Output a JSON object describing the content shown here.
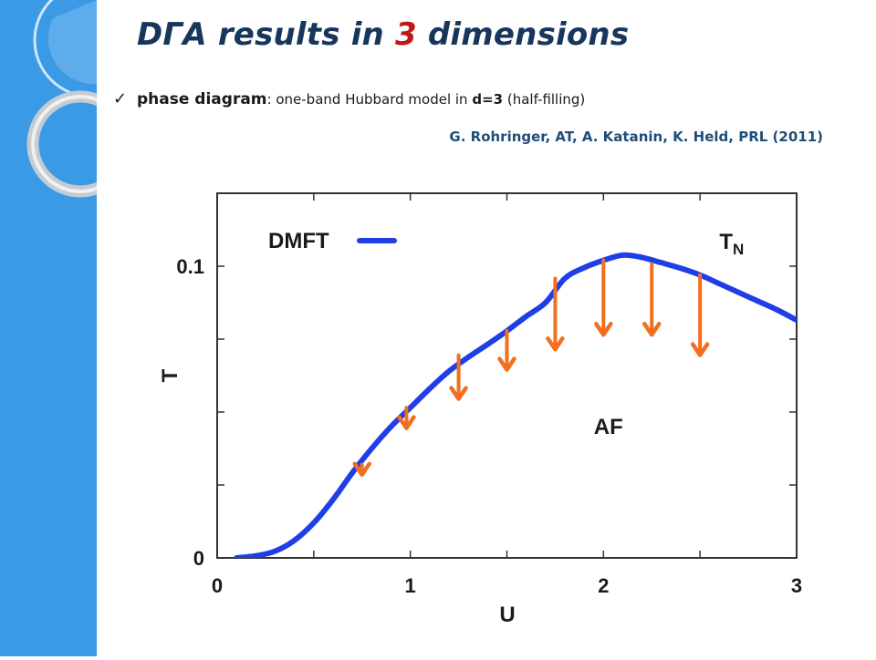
{
  "slide": {
    "title_part1": "DΓA  results in ",
    "title_number": "3",
    "title_part2": " dimensions",
    "bullet_check": "✓",
    "bullet_phase": "phase diagram",
    "bullet_rest_1": ": one-band Hubbard model in ",
    "bullet_d": "d=3",
    "bullet_rest_2": " (half-filling)",
    "citation": "G. Rohringer,  AT,  A. Katanin, K. Held,  PRL  (2011)",
    "accent_color": "#3b9ae6",
    "title_color": "#17365d",
    "title_number_color": "#c0171b"
  },
  "chart_data": {
    "type": "line",
    "xlabel": "U",
    "ylabel": "T",
    "xlim": [
      0,
      3
    ],
    "ylim": [
      0,
      0.125
    ],
    "x_ticks": [
      {
        "value": 0,
        "label": "0"
      },
      {
        "value": 1,
        "label": "1"
      },
      {
        "value": 2,
        "label": "2"
      },
      {
        "value": 3,
        "label": "3"
      }
    ],
    "y_ticks": [
      {
        "value": 0,
        "label": "0"
      },
      {
        "value": 0.1,
        "label": "0.1"
      }
    ],
    "x_minor_ticks": [
      0.5,
      1.5,
      2.5
    ],
    "y_minor_ticks": [
      0.025,
      0.05,
      0.075
    ],
    "series": [
      {
        "name": "DMFT",
        "color": "#1f3ee6",
        "x": [
          0.1,
          0.2,
          0.3,
          0.4,
          0.5,
          0.6,
          0.7,
          0.8,
          0.9,
          1.0,
          1.1,
          1.2,
          1.3,
          1.4,
          1.5,
          1.6,
          1.7,
          1.8,
          1.9,
          2.0,
          2.1,
          2.2,
          2.3,
          2.4,
          2.5,
          2.6,
          2.7,
          2.8,
          2.9,
          3.0
        ],
        "y": [
          0.0,
          0.0007,
          0.0023,
          0.006,
          0.012,
          0.02,
          0.0292,
          0.0375,
          0.045,
          0.0515,
          0.058,
          0.064,
          0.0688,
          0.0732,
          0.0778,
          0.0828,
          0.0875,
          0.0958,
          0.0995,
          0.102,
          0.1038,
          0.103,
          0.1012,
          0.0993,
          0.097,
          0.094,
          0.091,
          0.088,
          0.085,
          0.0815
        ]
      }
    ],
    "legend": {
      "position": "top-left",
      "entries": [
        "DMFT"
      ]
    },
    "arrows": {
      "color": "#f07020",
      "items": [
        {
          "x": 0.75,
          "y_from": 0.032,
          "y_to": 0.0285
        },
        {
          "x": 0.98,
          "y_from": 0.0515,
          "y_to": 0.0445
        },
        {
          "x": 1.25,
          "y_from": 0.0695,
          "y_to": 0.0545
        },
        {
          "x": 1.5,
          "y_from": 0.0778,
          "y_to": 0.0645
        },
        {
          "x": 1.75,
          "y_from": 0.0958,
          "y_to": 0.0715
        },
        {
          "x": 2.0,
          "y_from": 0.102,
          "y_to": 0.0765
        },
        {
          "x": 2.25,
          "y_from": 0.1008,
          "y_to": 0.0765
        },
        {
          "x": 2.5,
          "y_from": 0.097,
          "y_to": 0.0695
        }
      ]
    },
    "annotations": [
      {
        "text": "T",
        "sub": "N",
        "x": 2.6,
        "y": 0.106
      },
      {
        "text": "AF",
        "x": 1.95,
        "y": 0.0425
      }
    ]
  }
}
